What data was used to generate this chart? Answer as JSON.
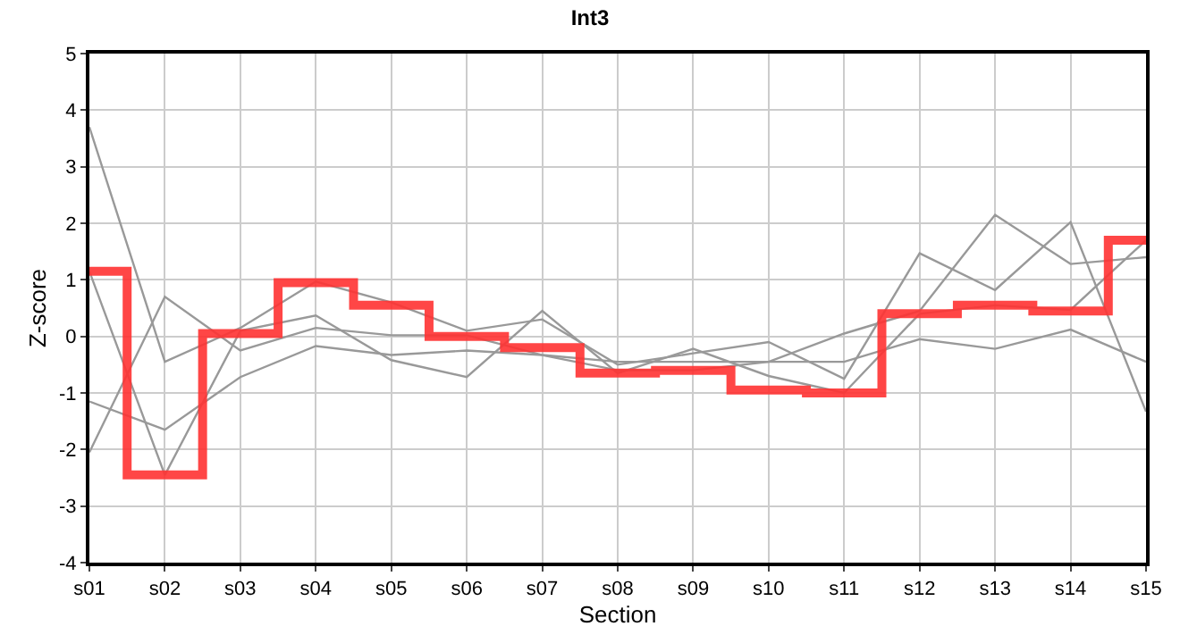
{
  "chart_data": {
    "type": "line",
    "title": "Int3",
    "xlabel": "Section",
    "ylabel": "Z-score",
    "categories": [
      "s01",
      "s02",
      "s03",
      "s04",
      "s05",
      "s06",
      "s07",
      "s08",
      "s09",
      "s10",
      "s11",
      "s12",
      "s13",
      "s14",
      "s15"
    ],
    "ylim": [
      -4,
      5
    ],
    "yticks": [
      -4,
      -3,
      -2,
      -1,
      0,
      1,
      2,
      3,
      4,
      5
    ],
    "grid": true,
    "marker": "none",
    "series": [
      {
        "color": "#999999",
        "values": [
          3.7,
          -0.45,
          0.15,
          0.97,
          0.6,
          0.1,
          0.3,
          -0.5,
          -0.3,
          -0.1,
          -0.75,
          1.47,
          0.82,
          2.02,
          -1.33
        ]
      },
      {
        "color": "#999999",
        "values": [
          1.15,
          -2.45,
          0.1,
          0.37,
          -0.42,
          -0.72,
          0.45,
          -0.65,
          -0.22,
          -0.7,
          -1.0,
          0.4,
          0.55,
          0.47,
          1.7
        ]
      },
      {
        "color": "#999999",
        "values": [
          -1.15,
          -1.65,
          -0.72,
          -0.17,
          -0.33,
          -0.25,
          -0.33,
          -0.45,
          -0.45,
          -0.45,
          -0.45,
          -0.05,
          -0.22,
          0.12,
          -0.45
        ]
      },
      {
        "color": "#999999",
        "values": [
          -2.05,
          0.7,
          -0.25,
          0.15,
          0.02,
          0.02,
          -0.33,
          -0.6,
          -0.6,
          -0.45,
          0.05,
          0.45,
          2.15,
          1.28,
          1.4
        ]
      },
      {
        "type": "step",
        "color": "#ff3333",
        "values": [
          1.15,
          -2.45,
          0.05,
          0.95,
          0.55,
          0.0,
          -0.2,
          -0.65,
          -0.6,
          -0.95,
          -1.0,
          0.4,
          0.55,
          0.45,
          1.7
        ]
      }
    ]
  }
}
